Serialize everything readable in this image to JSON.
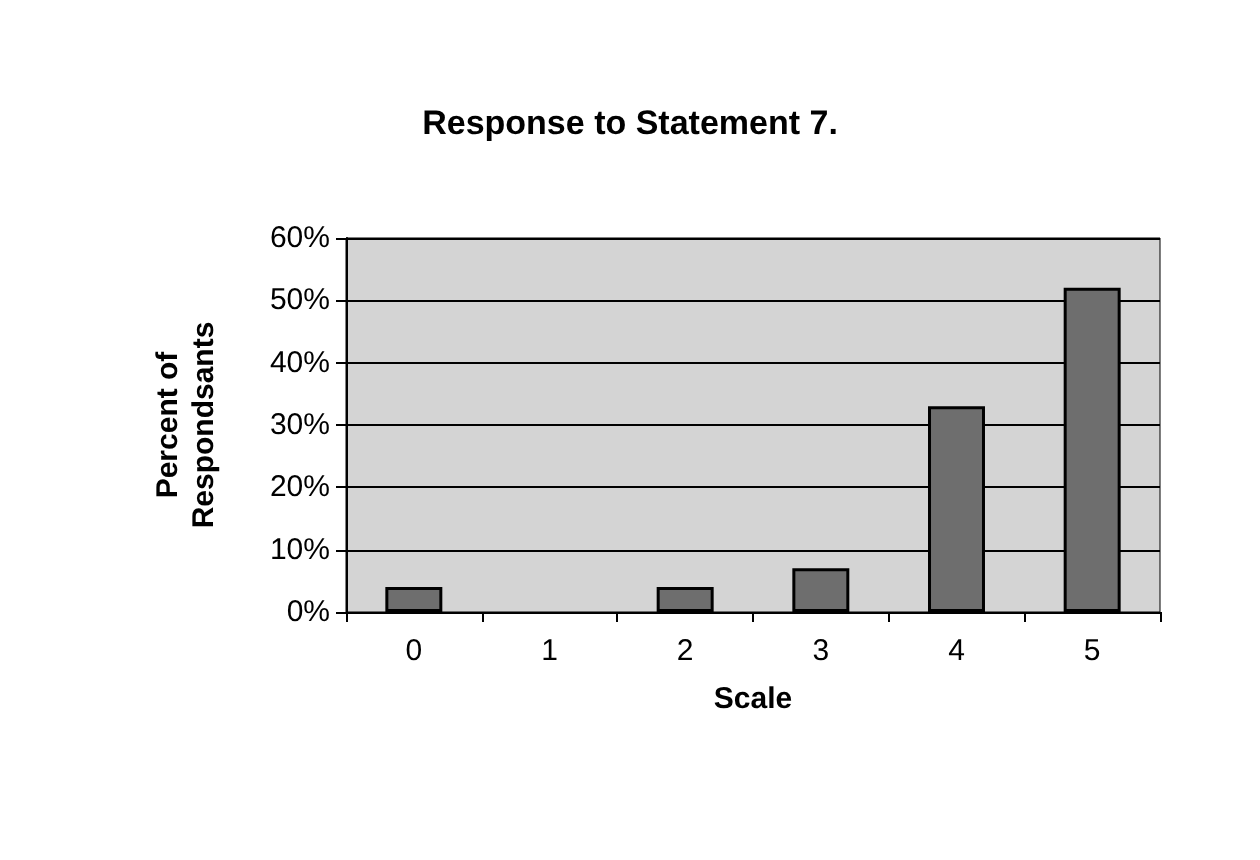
{
  "chart_data": {
    "type": "bar",
    "title": "Response to Statement 7.",
    "xlabel": "Scale",
    "ylabel": "Percent of\nRespondsants",
    "categories": [
      "0",
      "1",
      "2",
      "3",
      "4",
      "5"
    ],
    "values": [
      4,
      0,
      4,
      7,
      33,
      52
    ],
    "color": "#6e6e6e",
    "ylim": [
      0,
      60
    ],
    "yticks": [
      {
        "value": 0,
        "label": "0%"
      },
      {
        "value": 10,
        "label": "10%"
      },
      {
        "value": 20,
        "label": "20%"
      },
      {
        "value": 30,
        "label": "30%"
      },
      {
        "value": 40,
        "label": "40%"
      },
      {
        "value": 50,
        "label": "50%"
      },
      {
        "value": 60,
        "label": "60%"
      }
    ],
    "grid": "y"
  }
}
